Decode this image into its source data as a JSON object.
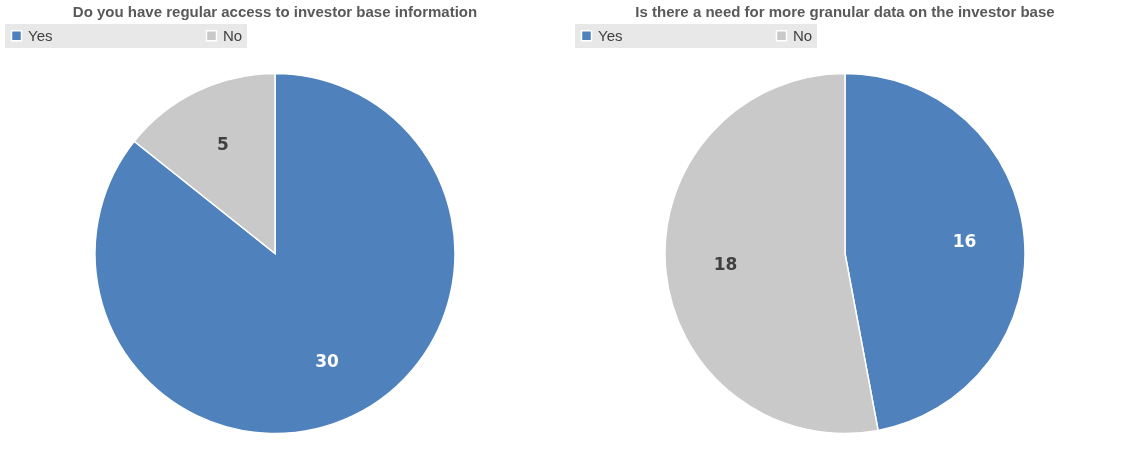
{
  "chart_data": [
    {
      "type": "pie",
      "title": "Do you have regular access to investor base information",
      "categories": [
        "Yes",
        "No"
      ],
      "values": [
        30,
        5
      ],
      "colors": [
        "#4f81bd",
        "#c9c9c9"
      ],
      "data_labels": true,
      "legend": "top"
    },
    {
      "type": "pie",
      "title": "Is there a need for more granular data on the investor base",
      "categories": [
        "Yes",
        "No"
      ],
      "values": [
        16,
        18
      ],
      "colors": [
        "#4f81bd",
        "#c9c9c9"
      ],
      "data_labels": true,
      "legend": "top"
    }
  ]
}
